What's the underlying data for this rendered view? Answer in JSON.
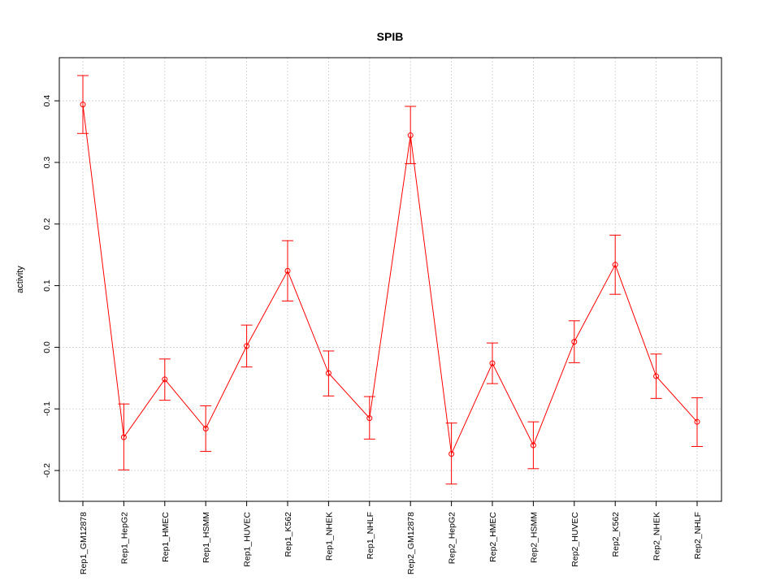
{
  "chart_data": {
    "type": "line",
    "title": "SPIB",
    "xlabel": "",
    "ylabel": "activity",
    "ylim": [
      -0.25,
      0.47
    ],
    "yticks": [
      -0.2,
      -0.1,
      0.0,
      0.1,
      0.2,
      0.3,
      0.4
    ],
    "ytick_labels": [
      "-0.2",
      "-0.1",
      "0.0",
      "0.1",
      "0.2",
      "0.3",
      "0.4"
    ],
    "grid": true,
    "color": "#ff0000",
    "categories": [
      "Rep1_GM12878",
      "Rep1_HepG2",
      "Rep1_HMEC",
      "Rep1_HSMM",
      "Rep1_HUVEC",
      "Rep1_K562",
      "Rep1_NHEK",
      "Rep1_NHLF",
      "Rep2_GM12878",
      "Rep2_HepG2",
      "Rep2_HMEC",
      "Rep2_HSMM",
      "Rep2_HUVEC",
      "Rep2_K562",
      "Rep2_NHEK",
      "Rep2_NHLF"
    ],
    "values": [
      0.394,
      -0.146,
      -0.052,
      -0.132,
      0.002,
      0.124,
      -0.042,
      -0.115,
      0.344,
      -0.173,
      -0.026,
      -0.159,
      0.009,
      0.134,
      -0.047,
      -0.121
    ],
    "error_upper": [
      0.441,
      -0.092,
      -0.019,
      -0.095,
      0.036,
      0.173,
      -0.006,
      -0.08,
      0.391,
      -0.123,
      0.007,
      -0.121,
      0.043,
      0.182,
      -0.011,
      -0.082
    ],
    "error_lower": [
      0.347,
      -0.199,
      -0.086,
      -0.169,
      -0.032,
      0.075,
      -0.079,
      -0.149,
      0.298,
      -0.222,
      -0.059,
      -0.197,
      -0.025,
      0.086,
      -0.083,
      -0.161
    ]
  }
}
